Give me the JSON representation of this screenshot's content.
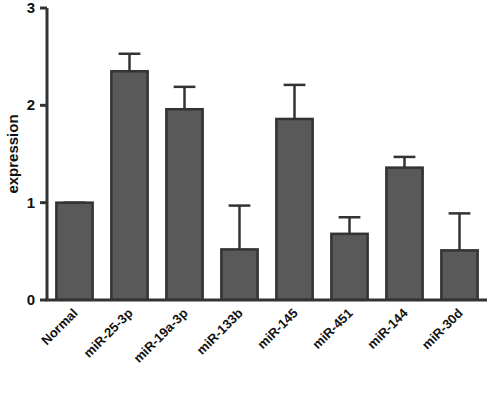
{
  "chart_data": {
    "type": "bar",
    "y_label": "expression",
    "categories": [
      "Normal",
      "miR-25-3p",
      "miR-19a-3p",
      "miR-133b",
      "miR-145",
      "miR-451",
      "miR-144",
      "miR-30d"
    ],
    "values": [
      1.0,
      2.35,
      1.96,
      0.52,
      1.86,
      0.68,
      1.36,
      0.51
    ],
    "errors": [
      0,
      0.18,
      0.23,
      0.45,
      0.35,
      0.17,
      0.11,
      0.38
    ],
    "color": "#595959",
    "ylim": [
      0,
      3
    ],
    "yticks": [
      0,
      1,
      2,
      3
    ],
    "grid": false
  }
}
